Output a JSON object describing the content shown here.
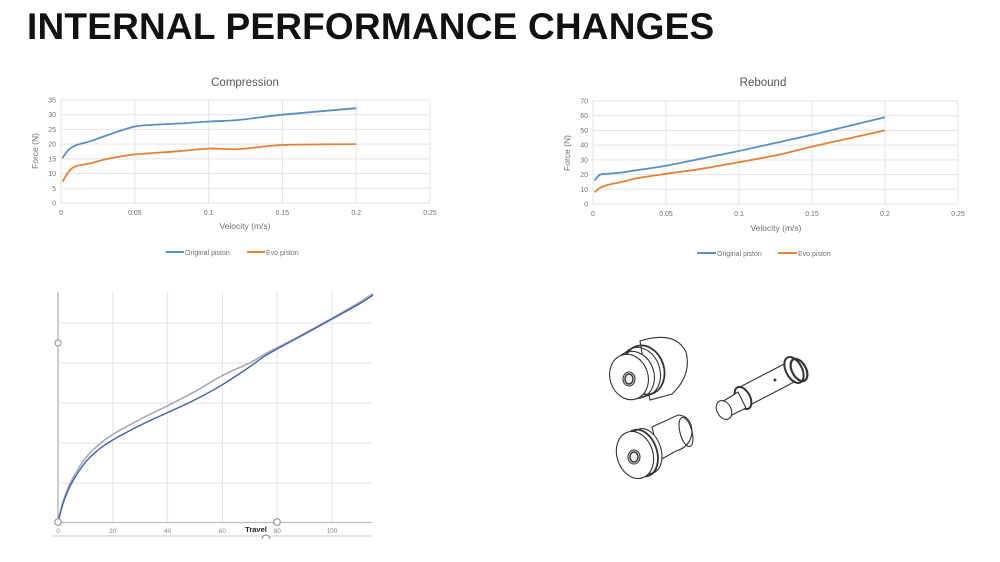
{
  "slide": {
    "title": "INTERNAL PERFORMANCE CHANGES"
  },
  "colors": {
    "original": "#5b8fc2",
    "evo": "#e0823a",
    "grid": "#e3e3e3",
    "axis_text": "#707070",
    "travel_light": "#a9a9b5",
    "travel_dark": "#3e63a8"
  },
  "chart_data": [
    {
      "type": "line",
      "title": "Compression",
      "xlabel": "Velocity (m/s)",
      "ylabel": "Force (N)",
      "xlim": [
        0,
        0.25
      ],
      "ylim": [
        0,
        35
      ],
      "x_ticks": [
        "0",
        "0.05",
        "0.1",
        "0.15",
        "0.2",
        "0.25"
      ],
      "y_ticks": [
        "0",
        "5",
        "10",
        "15",
        "20",
        "25",
        "30",
        "35"
      ],
      "grid": true,
      "legend_position": "bottom",
      "x": [
        0.001,
        0.005,
        0.01,
        0.02,
        0.03,
        0.04,
        0.05,
        0.06,
        0.08,
        0.1,
        0.12,
        0.15,
        0.2
      ],
      "series": [
        {
          "name": "Original piston",
          "values": [
            15.3,
            18,
            19.6,
            21,
            22.8,
            24.5,
            26,
            26.5,
            27,
            27.7,
            28.2,
            30,
            32.2
          ]
        },
        {
          "name": "Evo piston",
          "values": [
            7.2,
            10.5,
            12.5,
            13.5,
            14.8,
            15.8,
            16.5,
            16.9,
            17.6,
            18.5,
            18.3,
            19.7,
            20
          ]
        }
      ]
    },
    {
      "type": "line",
      "title": "Rebound",
      "xlabel": "Velocity (m/s)",
      "ylabel": "Force (N)",
      "xlim": [
        0,
        0.25
      ],
      "ylim": [
        0,
        70
      ],
      "x_ticks": [
        "0",
        "0.05",
        "0.1",
        "0.15",
        "0.2",
        "0.25"
      ],
      "y_ticks": [
        "0",
        "10",
        "20",
        "30",
        "40",
        "50",
        "60",
        "70"
      ],
      "grid": true,
      "legend_position": "bottom",
      "x": [
        0.001,
        0.005,
        0.01,
        0.02,
        0.03,
        0.05,
        0.075,
        0.1,
        0.125,
        0.15,
        0.175,
        0.2
      ],
      "series": [
        {
          "name": "Original piston",
          "values": [
            16,
            20,
            20.5,
            21.5,
            23,
            26,
            31,
            36,
            41.5,
            47,
            53,
            59
          ]
        },
        {
          "name": "Evo piston",
          "values": [
            8,
            11,
            13,
            15,
            17.5,
            20.5,
            24,
            28.5,
            33,
            39,
            44.5,
            50
          ]
        }
      ]
    },
    {
      "type": "line",
      "title": "",
      "xlabel": "Travel",
      "ylabel": "",
      "xlim": [
        0,
        115
      ],
      "ylim": [
        0,
        6
      ],
      "x_ticks": [
        "0",
        "20",
        "40",
        "60",
        "80",
        "100"
      ],
      "y_ticks": [],
      "grid": true,
      "legend_position": "none",
      "x": [
        0,
        2,
        5,
        10,
        15,
        20,
        30,
        40,
        50,
        60,
        70,
        75,
        80,
        90,
        100,
        110,
        115
      ],
      "series": [
        {
          "name": "light curve",
          "values": [
            0,
            0.55,
            1.05,
            1.6,
            1.95,
            2.2,
            2.58,
            2.92,
            3.28,
            3.68,
            4.0,
            4.2,
            4.38,
            4.74,
            5.12,
            5.52,
            5.74
          ]
        },
        {
          "name": "dark curve",
          "values": [
            0,
            0.5,
            0.98,
            1.5,
            1.83,
            2.06,
            2.43,
            2.75,
            3.07,
            3.45,
            3.9,
            4.15,
            4.35,
            4.72,
            5.1,
            5.48,
            5.7
          ]
        }
      ]
    }
  ],
  "compression": {
    "title": "Compression",
    "xlabel": "Velocity (m/s)",
    "ylabel": "Force (N)",
    "legend_original": "Original piston",
    "legend_evo": "Evo piston"
  },
  "rebound": {
    "title": "Rebound",
    "xlabel": "Velocity (m/s)",
    "ylabel": "Force (N)",
    "legend_original": "Original piston",
    "legend_evo": "Evo piston"
  },
  "travel_chart": {
    "xlabel": "Travel"
  },
  "parts_image": {
    "label": "piston-parts-drawing"
  }
}
